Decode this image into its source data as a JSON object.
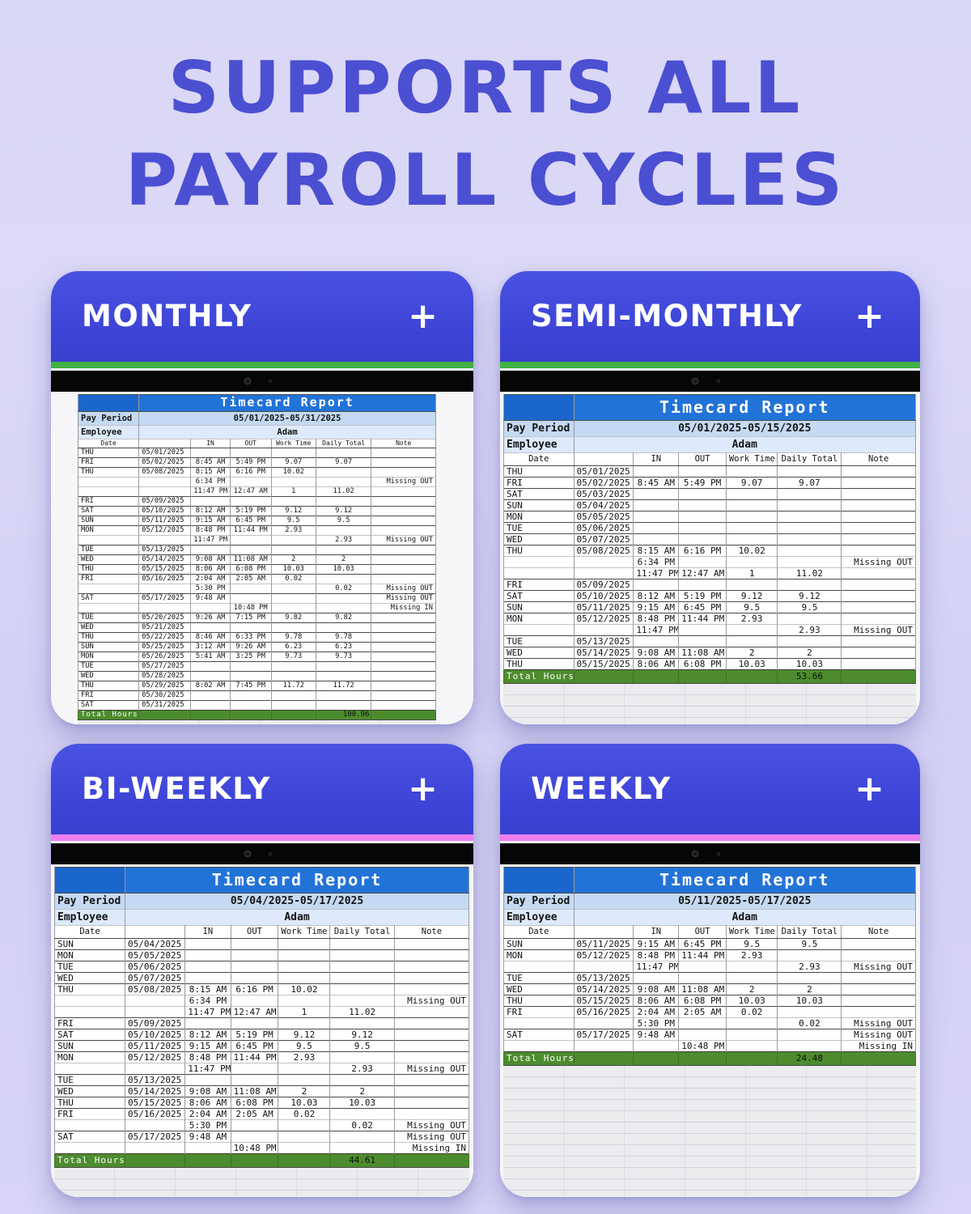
{
  "page": {
    "title_line1": "SUPPORTS ALL",
    "title_line2": "PAYROLL CYCLES"
  },
  "colors": {
    "background": "#d7d4f5",
    "title_blue": "#4b4fd2",
    "card_header_blue": "#3d44d8",
    "green_stripe": "#3fb142",
    "pink_stripe": "#ef7ff0",
    "report_header_blue": "#2273d8",
    "report_corner_blue": "#1a66cc",
    "pay_period_row": "#c4daf3",
    "employee_row": "#dceafb",
    "total_row_green": "#4d8c2e"
  },
  "report": {
    "title": "Timecard Report",
    "pay_period_label": "Pay Period",
    "employee_label": "Employee",
    "total_label": "Total Hours",
    "columns": [
      "Date",
      "",
      "IN",
      "OUT",
      "Work Time",
      "Daily Total",
      "Note"
    ]
  },
  "panels": [
    {
      "label": "MONTHLY",
      "add_label": "+",
      "stripe_color": "#3fb142",
      "pay_period": "05/01/2025-05/31/2025",
      "employee": "Adam",
      "total_hours": "100.96",
      "rows": [
        [
          "THU",
          "05/01/2025",
          "",
          "",
          "",
          "",
          ""
        ],
        [
          "FRI",
          "05/02/2025",
          "8:45 AM",
          "5:49 PM",
          "9.07",
          "9.07",
          ""
        ],
        [
          "THU",
          "05/08/2025",
          "8:15 AM",
          "6:16 PM",
          "10.02",
          "",
          ""
        ],
        [
          "",
          "",
          "6:34 PM",
          "",
          "",
          "",
          "Missing OUT"
        ],
        [
          "",
          "",
          "11:47 PM",
          "12:47 AM",
          "1",
          "11.02",
          ""
        ],
        [
          "FRI",
          "05/09/2025",
          "",
          "",
          "",
          "",
          ""
        ],
        [
          "SAT",
          "05/10/2025",
          "8:12 AM",
          "5:19 PM",
          "9.12",
          "9.12",
          ""
        ],
        [
          "SUN",
          "05/11/2025",
          "9:15 AM",
          "6:45 PM",
          "9.5",
          "9.5",
          ""
        ],
        [
          "MON",
          "05/12/2025",
          "8:48 PM",
          "11:44 PM",
          "2.93",
          "",
          ""
        ],
        [
          "",
          "",
          "11:47 PM",
          "",
          "",
          "2.93",
          "Missing OUT"
        ],
        [
          "TUE",
          "05/13/2025",
          "",
          "",
          "",
          "",
          ""
        ],
        [
          "WED",
          "05/14/2025",
          "9:08 AM",
          "11:08 AM",
          "2",
          "2",
          ""
        ],
        [
          "THU",
          "05/15/2025",
          "8:06 AM",
          "6:08 PM",
          "10.03",
          "10.03",
          ""
        ],
        [
          "FRI",
          "05/16/2025",
          "2:04 AM",
          "2:05 AM",
          "0.02",
          "",
          ""
        ],
        [
          "",
          "",
          "5:30 PM",
          "",
          "",
          "0.02",
          "Missing OUT"
        ],
        [
          "SAT",
          "05/17/2025",
          "9:48 AM",
          "",
          "",
          "",
          "Missing OUT"
        ],
        [
          "",
          "",
          "",
          "10:48 PM",
          "",
          "",
          "Missing IN"
        ],
        [
          "TUE",
          "05/20/2025",
          "9:26 AM",
          "7:15 PM",
          "9.82",
          "9.82",
          ""
        ],
        [
          "WED",
          "05/21/2025",
          "",
          "",
          "",
          "",
          ""
        ],
        [
          "THU",
          "05/22/2025",
          "8:46 AM",
          "6:33 PM",
          "9.78",
          "9.78",
          ""
        ],
        [
          "SUN",
          "05/25/2025",
          "3:12 AM",
          "9:26 AM",
          "6.23",
          "6.23",
          ""
        ],
        [
          "MON",
          "05/26/2025",
          "5:41 AM",
          "3:25 PM",
          "9.73",
          "9.73",
          ""
        ],
        [
          "TUE",
          "05/27/2025",
          "",
          "",
          "",
          "",
          ""
        ],
        [
          "WED",
          "05/28/2025",
          "",
          "",
          "",
          "",
          ""
        ],
        [
          "THU",
          "05/29/2025",
          "8:02 AM",
          "7:45 PM",
          "11.72",
          "11.72",
          ""
        ],
        [
          "FRI",
          "05/30/2025",
          "",
          "",
          "",
          "",
          ""
        ],
        [
          "SAT",
          "05/31/2025",
          "",
          "",
          "",
          "",
          ""
        ]
      ]
    },
    {
      "label": "SEMI-MONTHLY",
      "add_label": "+",
      "stripe_color": "#3fb142",
      "pay_period": "05/01/2025-05/15/2025",
      "employee": "Adam",
      "total_hours": "53.66",
      "rows": [
        [
          "THU",
          "05/01/2025",
          "",
          "",
          "",
          "",
          ""
        ],
        [
          "FRI",
          "05/02/2025",
          "8:45 AM",
          "5:49 PM",
          "9.07",
          "9.07",
          ""
        ],
        [
          "SAT",
          "05/03/2025",
          "",
          "",
          "",
          "",
          ""
        ],
        [
          "SUN",
          "05/04/2025",
          "",
          "",
          "",
          "",
          ""
        ],
        [
          "MON",
          "05/05/2025",
          "",
          "",
          "",
          "",
          ""
        ],
        [
          "TUE",
          "05/06/2025",
          "",
          "",
          "",
          "",
          ""
        ],
        [
          "WED",
          "05/07/2025",
          "",
          "",
          "",
          "",
          ""
        ],
        [
          "THU",
          "05/08/2025",
          "8:15 AM",
          "6:16 PM",
          "10.02",
          "",
          ""
        ],
        [
          "",
          "",
          "6:34 PM",
          "",
          "",
          "",
          "Missing OUT"
        ],
        [
          "",
          "",
          "11:47 PM",
          "12:47 AM",
          "1",
          "11.02",
          ""
        ],
        [
          "FRI",
          "05/09/2025",
          "",
          "",
          "",
          "",
          ""
        ],
        [
          "SAT",
          "05/10/2025",
          "8:12 AM",
          "5:19 PM",
          "9.12",
          "9.12",
          ""
        ],
        [
          "SUN",
          "05/11/2025",
          "9:15 AM",
          "6:45 PM",
          "9.5",
          "9.5",
          ""
        ],
        [
          "MON",
          "05/12/2025",
          "8:48 PM",
          "11:44 PM",
          "2.93",
          "",
          ""
        ],
        [
          "",
          "",
          "11:47 PM",
          "",
          "",
          "2.93",
          "Missing OUT"
        ],
        [
          "TUE",
          "05/13/2025",
          "",
          "",
          "",
          "",
          ""
        ],
        [
          "WED",
          "05/14/2025",
          "9:08 AM",
          "11:08 AM",
          "2",
          "2",
          ""
        ],
        [
          "THU",
          "05/15/2025",
          "8:06 AM",
          "6:08 PM",
          "10.03",
          "10.03",
          ""
        ]
      ]
    },
    {
      "label": "BI-WEEKLY",
      "add_label": "+",
      "stripe_color": "#ef7ff0",
      "pay_period": "05/04/2025-05/17/2025",
      "employee": "Adam",
      "total_hours": "44.61",
      "rows": [
        [
          "SUN",
          "05/04/2025",
          "",
          "",
          "",
          "",
          ""
        ],
        [
          "MON",
          "05/05/2025",
          "",
          "",
          "",
          "",
          ""
        ],
        [
          "TUE",
          "05/06/2025",
          "",
          "",
          "",
          "",
          ""
        ],
        [
          "WED",
          "05/07/2025",
          "",
          "",
          "",
          "",
          ""
        ],
        [
          "THU",
          "05/08/2025",
          "8:15 AM",
          "6:16 PM",
          "10.02",
          "",
          ""
        ],
        [
          "",
          "",
          "6:34 PM",
          "",
          "",
          "",
          "Missing OUT"
        ],
        [
          "",
          "",
          "11:47 PM",
          "12:47 AM",
          "1",
          "11.02",
          ""
        ],
        [
          "FRI",
          "05/09/2025",
          "",
          "",
          "",
          "",
          ""
        ],
        [
          "SAT",
          "05/10/2025",
          "8:12 AM",
          "5:19 PM",
          "9.12",
          "9.12",
          ""
        ],
        [
          "SUN",
          "05/11/2025",
          "9:15 AM",
          "6:45 PM",
          "9.5",
          "9.5",
          ""
        ],
        [
          "MON",
          "05/12/2025",
          "8:48 PM",
          "11:44 PM",
          "2.93",
          "",
          ""
        ],
        [
          "",
          "",
          "11:47 PM",
          "",
          "",
          "2.93",
          "Missing OUT"
        ],
        [
          "TUE",
          "05/13/2025",
          "",
          "",
          "",
          "",
          ""
        ],
        [
          "WED",
          "05/14/2025",
          "9:08 AM",
          "11:08 AM",
          "2",
          "2",
          ""
        ],
        [
          "THU",
          "05/15/2025",
          "8:06 AM",
          "6:08 PM",
          "10.03",
          "10.03",
          ""
        ],
        [
          "FRI",
          "05/16/2025",
          "2:04 AM",
          "2:05 AM",
          "0.02",
          "",
          ""
        ],
        [
          "",
          "",
          "5:30 PM",
          "",
          "",
          "0.02",
          "Missing OUT"
        ],
        [
          "SAT",
          "05/17/2025",
          "9:48 AM",
          "",
          "",
          "",
          "Missing OUT"
        ],
        [
          "",
          "",
          "",
          "10:48 PM",
          "",
          "",
          "Missing IN"
        ]
      ]
    },
    {
      "label": "WEEKLY",
      "add_label": "+",
      "stripe_color": "#ef7ff0",
      "pay_period": "05/11/2025-05/17/2025",
      "employee": "Adam",
      "total_hours": "24.48",
      "rows": [
        [
          "SUN",
          "05/11/2025",
          "9:15 AM",
          "6:45 PM",
          "9.5",
          "9.5",
          ""
        ],
        [
          "MON",
          "05/12/2025",
          "8:48 PM",
          "11:44 PM",
          "2.93",
          "",
          ""
        ],
        [
          "",
          "",
          "11:47 PM",
          "",
          "",
          "2.93",
          "Missing OUT"
        ],
        [
          "TUE",
          "05/13/2025",
          "",
          "",
          "",
          "",
          ""
        ],
        [
          "WED",
          "05/14/2025",
          "9:08 AM",
          "11:08 AM",
          "2",
          "2",
          ""
        ],
        [
          "THU",
          "05/15/2025",
          "8:06 AM",
          "6:08 PM",
          "10.03",
          "10.03",
          ""
        ],
        [
          "FRI",
          "05/16/2025",
          "2:04 AM",
          "2:05 AM",
          "0.02",
          "",
          ""
        ],
        [
          "",
          "",
          "5:30 PM",
          "",
          "",
          "0.02",
          "Missing OUT"
        ],
        [
          "SAT",
          "05/17/2025",
          "9:48 AM",
          "",
          "",
          "",
          "Missing OUT"
        ],
        [
          "",
          "",
          "",
          "10:48 PM",
          "",
          "",
          "Missing IN"
        ]
      ]
    }
  ]
}
